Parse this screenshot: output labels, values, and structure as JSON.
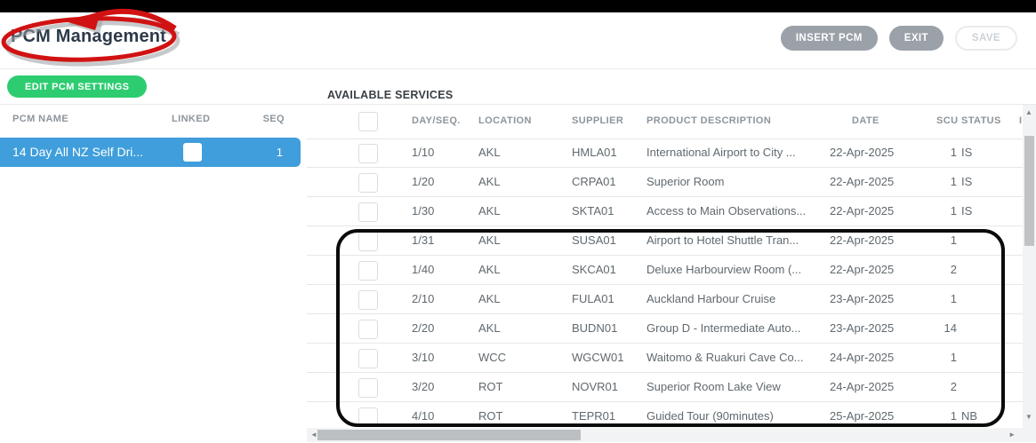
{
  "header": {
    "title": "PCM Management",
    "buttons": [
      {
        "id": "insert-pcm",
        "label": "INSERT PCM",
        "style": "solid"
      },
      {
        "id": "exit",
        "label": "EXIT",
        "style": "solid"
      },
      {
        "id": "save",
        "label": "SAVE",
        "style": "disabled"
      }
    ]
  },
  "sidebar": {
    "edit_button_label": "EDIT PCM SETTINGS",
    "columns": {
      "name": "PCM NAME",
      "linked": "LINKED",
      "seq": "SEQ"
    },
    "rows": [
      {
        "name": "14 Day All NZ Self Dri...",
        "linked": false,
        "seq": "1",
        "selected": true
      }
    ]
  },
  "services": {
    "section_title": "AVAILABLE SERVICES",
    "columns": {
      "dayseq": "DAY/SEQ.",
      "location": "LOCATION",
      "supplier": "SUPPLIER",
      "product": "PRODUCT DESCRIPTION",
      "date": "DATE",
      "scu": "SCU",
      "status": "STATUS",
      "partial": "I"
    },
    "rows": [
      {
        "dayseq": "1/10",
        "location": "AKL",
        "supplier": "HMLA01",
        "product": "International Airport to City ...",
        "date": "22-Apr-2025",
        "scu": "1",
        "status": "IS"
      },
      {
        "dayseq": "1/20",
        "location": "AKL",
        "supplier": "CRPA01",
        "product": "Superior Room",
        "date": "22-Apr-2025",
        "scu": "1",
        "status": "IS"
      },
      {
        "dayseq": "1/30",
        "location": "AKL",
        "supplier": "SKTA01",
        "product": "Access to Main Observations...",
        "date": "22-Apr-2025",
        "scu": "1",
        "status": "IS"
      },
      {
        "dayseq": "1/31",
        "location": "AKL",
        "supplier": "SUSA01",
        "product": "Airport to Hotel Shuttle Tran...",
        "date": "22-Apr-2025",
        "scu": "1",
        "status": ""
      },
      {
        "dayseq": "1/40",
        "location": "AKL",
        "supplier": "SKCA01",
        "product": "Deluxe Harbourview Room (...",
        "date": "22-Apr-2025",
        "scu": "2",
        "status": ""
      },
      {
        "dayseq": "2/10",
        "location": "AKL",
        "supplier": "FULA01",
        "product": "Auckland Harbour Cruise",
        "date": "23-Apr-2025",
        "scu": "1",
        "status": ""
      },
      {
        "dayseq": "2/20",
        "location": "AKL",
        "supplier": "BUDN01",
        "product": "Group D - Intermediate Auto...",
        "date": "23-Apr-2025",
        "scu": "14",
        "status": ""
      },
      {
        "dayseq": "3/10",
        "location": "WCC",
        "supplier": "WGCW01",
        "product": "Waitomo & Ruakuri Cave Co...",
        "date": "24-Apr-2025",
        "scu": "1",
        "status": ""
      },
      {
        "dayseq": "3/20",
        "location": "ROT",
        "supplier": "NOVR01",
        "product": "Superior Room Lake View",
        "date": "24-Apr-2025",
        "scu": "2",
        "status": ""
      },
      {
        "dayseq": "4/10",
        "location": "ROT",
        "supplier": "TEPR01",
        "product": "Guided Tour (90minutes)",
        "date": "25-Apr-2025",
        "scu": "1",
        "status": "NB"
      }
    ]
  },
  "annotations": {
    "red_circle_around": "PCM Management",
    "black_box_around_rows": "1/31 to 4/10"
  },
  "icons": {
    "up": "▲",
    "down": "▼",
    "left": "◄",
    "right": "►"
  },
  "colors": {
    "accent-blue": "#3f9edb",
    "green": "#2ecc71",
    "button-gray": "#9aa1a8",
    "annotation-red": "#d11212",
    "annotation-black": "#0b0b0b"
  }
}
